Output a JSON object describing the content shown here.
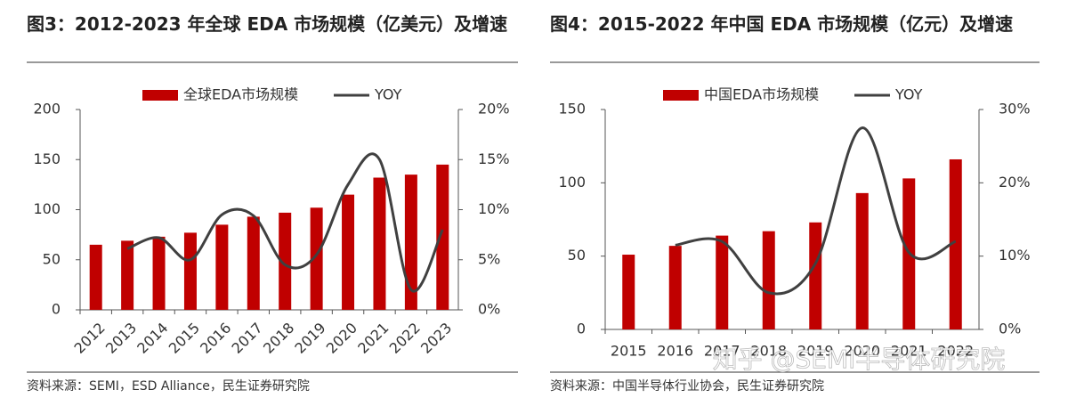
{
  "chart_data": [
    {
      "type": "bar",
      "title": "图3：2012-2023 年全球 EDA 市场规模（亿美元）及增速",
      "categories": [
        "2012",
        "2013",
        "2014",
        "2015",
        "2016",
        "2017",
        "2018",
        "2019",
        "2020",
        "2021",
        "2022",
        "2023"
      ],
      "series": [
        {
          "name": "全球EDA市场规模",
          "color": "#c00000",
          "values": [
            65,
            69,
            73,
            77,
            85,
            93,
            97,
            102,
            115,
            132,
            135,
            145
          ]
        },
        {
          "name": "YOY",
          "type": "line",
          "axis": "y2",
          "color": "#404040",
          "values": [
            null,
            6.1,
            7.2,
            5.0,
            9.5,
            9.4,
            4.5,
            5.5,
            12.5,
            15.0,
            2.0,
            8.0
          ]
        }
      ],
      "ylim": [
        0,
        200
      ],
      "yticks": [
        0,
        50,
        100,
        150,
        200
      ],
      "y2lim": [
        0,
        20
      ],
      "y2ticks": [
        {
          "value": 0,
          "label": "0%"
        },
        {
          "value": 5,
          "label": "5%"
        },
        {
          "value": 10,
          "label": "10%"
        },
        {
          "value": 15,
          "label": "15%"
        },
        {
          "value": 20,
          "label": "20%"
        }
      ],
      "source": "资料来源：SEMI，ESD Alliance，民生证券研究院"
    },
    {
      "type": "bar",
      "title": "图4：2015-2022 年中国 EDA 市场规模（亿元）及增速",
      "categories": [
        "2015",
        "2016",
        "2017",
        "2018",
        "2019",
        "2020",
        "2021",
        "2022"
      ],
      "series": [
        {
          "name": "中国EDA市场规模",
          "color": "#c00000",
          "values": [
            51,
            57,
            64,
            67,
            73,
            93,
            103,
            116
          ]
        },
        {
          "name": "YOY",
          "type": "line",
          "axis": "y2",
          "color": "#404040",
          "values": [
            null,
            11.5,
            12.0,
            5.0,
            9.0,
            27.5,
            10.5,
            12.0
          ]
        }
      ],
      "ylim": [
        0,
        150
      ],
      "yticks": [
        0,
        50,
        100,
        150
      ],
      "y2lim": [
        0,
        30
      ],
      "y2ticks": [
        {
          "value": 0,
          "label": "0%"
        },
        {
          "value": 10,
          "label": "10%"
        },
        {
          "value": 20,
          "label": "20%"
        },
        {
          "value": 30,
          "label": "30%"
        }
      ],
      "source": "资料来源：中国半导体行业协会，民生证券研究院"
    }
  ],
  "watermark": "知乎 @SEMI半导体研究院"
}
